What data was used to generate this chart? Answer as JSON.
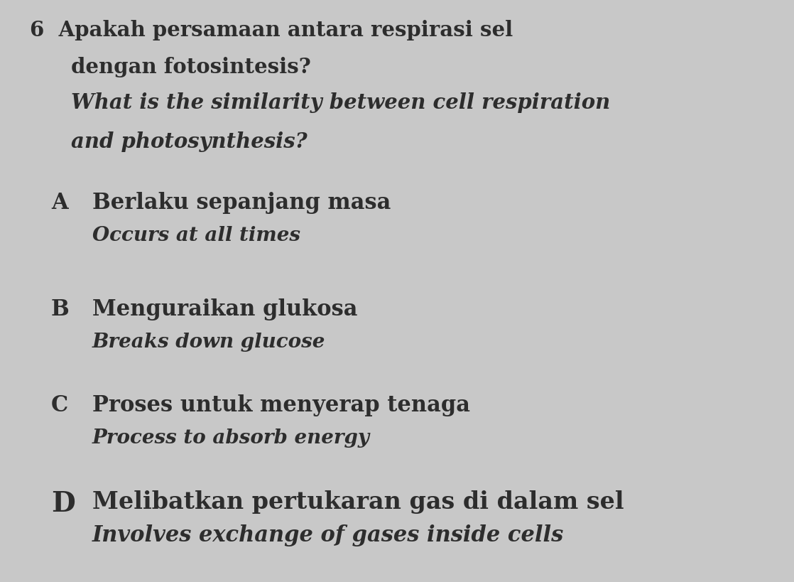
{
  "background_color": "#c8c8c8",
  "question_number": "6",
  "malay_q_line1": "6  Apakah persamaan antara respirasi sel",
  "malay_q_line2": "dengan fotosintesis?",
  "eng_q_line1": "What is the similarity between cell respiration",
  "eng_q_line2": "and photosynthesis?",
  "options": [
    {
      "letter": "A",
      "malay": "Berlaku sepanjang masa",
      "english": "Occurs at all times"
    },
    {
      "letter": "B",
      "malay": "Menguraikan glukosa",
      "english": "Breaks down glucose"
    },
    {
      "letter": "C",
      "malay": "Proses untuk menyerap tenaga",
      "english": "Process to absorb energy"
    },
    {
      "letter": "D",
      "malay": "Melibatkan pertukaran gas di dalam sel",
      "english": "Involves exchange of gases inside cells"
    }
  ],
  "text_color": "#2d2d2d",
  "fig_width": 11.18,
  "fig_height": 8.2,
  "dpi": 100
}
